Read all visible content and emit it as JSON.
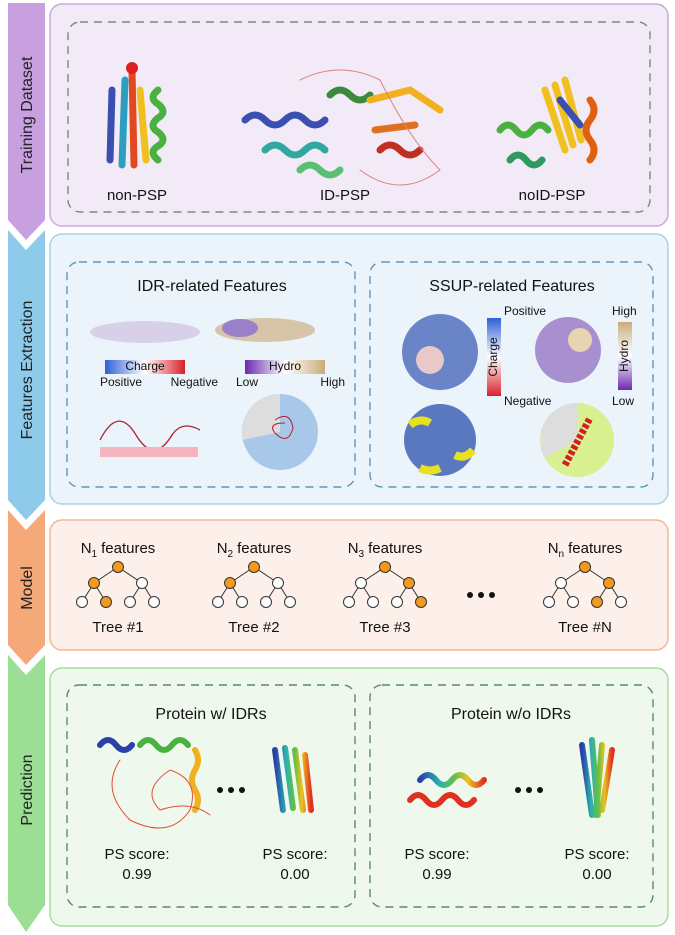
{
  "stages": [
    "Training Dataset",
    "Features Extraction",
    "Model",
    "Prediction"
  ],
  "training": {
    "labels": [
      "non-PSP",
      "ID-PSP",
      "noID-PSP"
    ]
  },
  "features": {
    "idr": {
      "title": "IDR-related Features",
      "charge": {
        "name": "Charge",
        "low": "Positive",
        "high": "Negative"
      },
      "hydro": {
        "name": "Hydro",
        "low": "Low",
        "high": "High"
      }
    },
    "ssup": {
      "title": "SSUP-related Features",
      "charge": {
        "name": "Charge",
        "low": "Positive",
        "high": "Negative"
      },
      "hydro": {
        "name": "Hydro",
        "low": "Low",
        "high": "High"
      }
    }
  },
  "model": {
    "trees": [
      {
        "n": "N",
        "sub": "1",
        "rest": "features",
        "label": "Tree #1"
      },
      {
        "n": "N",
        "sub": "2",
        "rest": "features",
        "label": "Tree #2"
      },
      {
        "n": "N",
        "sub": "3",
        "rest": "features",
        "label": "Tree #3"
      },
      {
        "n": "N",
        "sub": "n",
        "rest": "features",
        "label": "Tree #N"
      }
    ]
  },
  "prediction": {
    "groups": [
      {
        "title": "Protein w/ IDRs",
        "scores": [
          {
            "label": "PS score:",
            "value": "0.99"
          },
          {
            "label": "PS score:",
            "value": "0.00"
          }
        ]
      },
      {
        "title": "Protein w/o IDRs",
        "scores": [
          {
            "label": "PS score:",
            "value": "0.99"
          },
          {
            "label": "PS score:",
            "value": "0.00"
          }
        ]
      }
    ]
  }
}
